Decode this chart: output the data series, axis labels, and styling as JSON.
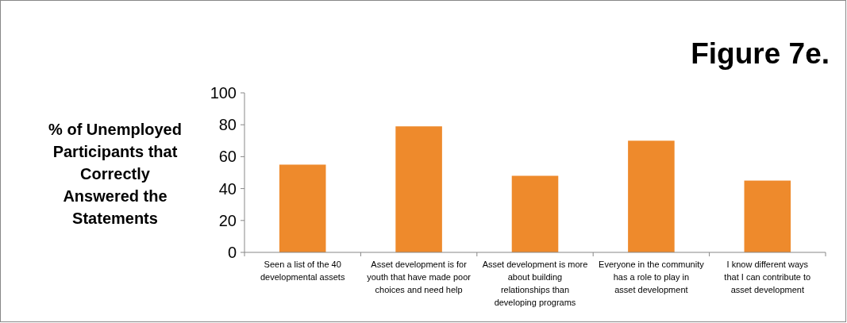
{
  "chart_data": {
    "type": "bar",
    "title": "Figure 7e.",
    "ylabel": "% of Unemployed Participants that Correctly Answered the Statements",
    "categories": [
      "Seen a list of the 40 developmental assets",
      "Asset development is for youth that have made poor choices and need help",
      "Asset development is more about building relationships than developing programs",
      "Everyone in the community has a role to play in asset development",
      "I know different ways that I can contribute to asset development"
    ],
    "values": [
      55,
      79,
      48,
      70,
      45
    ],
    "color": "#ee8a2c",
    "ylim": [
      0,
      100
    ],
    "yticks": [
      0,
      20,
      40,
      60,
      80,
      100
    ],
    "grid": false
  }
}
